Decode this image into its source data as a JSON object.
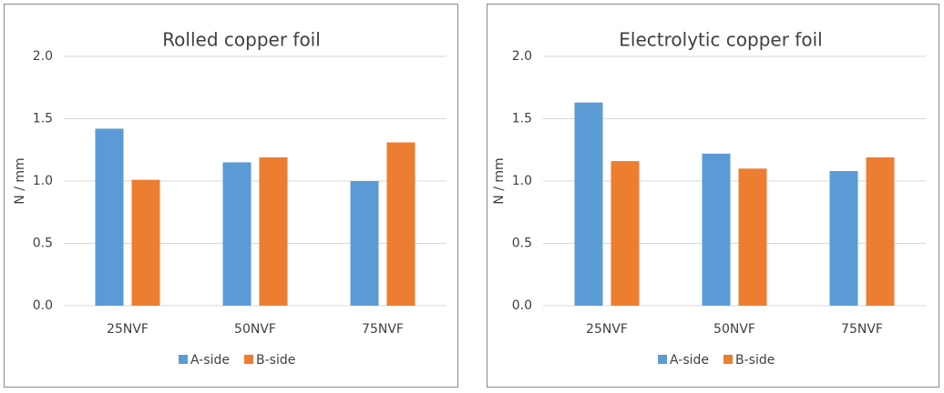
{
  "chart_data": [
    {
      "type": "bar",
      "title": "Rolled copper foil",
      "y_label": "N / mm",
      "categories": [
        "25NVF",
        "50NVF",
        "75NVF"
      ],
      "series": [
        {
          "name": "A-side",
          "color": "#5b9bd5",
          "values": [
            1.42,
            1.15,
            1.0
          ]
        },
        {
          "name": "B-side",
          "color": "#ed7d31",
          "values": [
            1.01,
            1.19,
            1.31
          ]
        }
      ],
      "ylim": [
        0,
        2
      ],
      "yticks": [
        {
          "value": 0,
          "label": "0.0"
        },
        0.5,
        {
          "value": 1,
          "label": "1.0"
        },
        1.5,
        {
          "value": 2,
          "label": "2.0"
        }
      ],
      "grid": true,
      "legend": "bottom"
    },
    {
      "type": "bar",
      "title": "Electrolytic copper foil",
      "y_label": "N / mm",
      "categories": [
        "25NVF",
        "50NVF",
        "75NVF"
      ],
      "series": [
        {
          "name": "A-side",
          "color": "#5b9bd5",
          "values": [
            1.63,
            1.22,
            1.08
          ]
        },
        {
          "name": "B-side",
          "color": "#ed7d31",
          "values": [
            1.16,
            1.1,
            1.19
          ]
        }
      ],
      "ylim": [
        0,
        2
      ],
      "yticks": [
        {
          "value": 0,
          "label": "0.0"
        },
        0.5,
        {
          "value": 1,
          "label": "1.0"
        },
        1.5,
        {
          "value": 2,
          "label": "2.0"
        }
      ],
      "grid": true,
      "legend": "bottom"
    }
  ]
}
